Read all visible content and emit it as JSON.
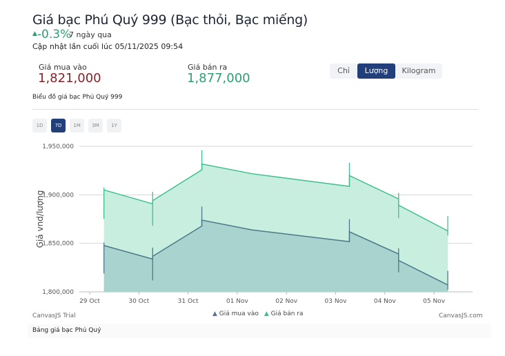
{
  "header": {
    "title": "Giá bạc Phú Quý 999 (Bạc thỏi, Bạc miếng)",
    "change": "-0.3%",
    "change_arrow": "▲",
    "period": "7 ngày qua",
    "updated": "Cập nhật lần cuối lúc 05/11/2025 09:54"
  },
  "prices": {
    "buy_label": "Giá mua vào",
    "buy_value": "1,821,000",
    "sell_label": "Giá bán ra",
    "sell_value": "1,877,000"
  },
  "unit_tabs": [
    {
      "label": "Chỉ",
      "active": false
    },
    {
      "label": "Lượng",
      "active": true
    },
    {
      "label": "Kilogram",
      "active": false
    }
  ],
  "chart_caption": "Biểu đồ giá bạc Phú Quý 999",
  "range_buttons": [
    {
      "label": "1D"
    },
    {
      "label": "7D",
      "active": true
    },
    {
      "label": "1M"
    },
    {
      "label": "3M"
    },
    {
      "label": "1Y"
    }
  ],
  "colors": {
    "sell_line": "#3fbf8e",
    "sell_fill": "#c8eedf",
    "buy_line": "#4d7889",
    "buy_fill": "#a8d3cf",
    "active": "#223f7a"
  },
  "chart_data": {
    "type": "area",
    "ylabel": "Giá vnd/lượng",
    "ylim": [
      1800000,
      1950000
    ],
    "yticks": [
      1800000,
      1850000,
      1900000,
      1950000
    ],
    "ytick_labels": [
      "1,800,000",
      "1,850,000",
      "1,900,000",
      "1,950,000"
    ],
    "xtick_labels": [
      "29 Oct",
      "30 Oct",
      "31 Oct",
      "01 Nov",
      "02 Nov",
      "03 Nov",
      "04 Nov",
      "05 Nov"
    ],
    "x_unit": "days since 29 Oct",
    "grid": true,
    "legend": "bottom-center",
    "series": [
      {
        "name": "Giá bán ra",
        "points": [
          [
            0.29,
            1905000
          ],
          [
            1.28,
            1890700
          ],
          [
            1.28,
            1894000
          ],
          [
            2.28,
            1925700
          ],
          [
            2.28,
            1931800
          ],
          [
            3.3,
            1921700
          ],
          [
            5.28,
            1908700
          ],
          [
            5.28,
            1919800
          ],
          [
            6.28,
            1895700
          ],
          [
            6.28,
            1889300
          ],
          [
            7.28,
            1862800
          ]
        ],
        "whiskers": [
          [
            0.29,
            1875100,
            1907500
          ],
          [
            1.28,
            1868000,
            1903000
          ],
          [
            2.28,
            1925700,
            1946000
          ],
          [
            5.28,
            1908700,
            1933000
          ],
          [
            6.28,
            1876000,
            1902000
          ],
          [
            7.28,
            1858000,
            1878000
          ]
        ]
      },
      {
        "name": "Giá mua vào",
        "points": [
          [
            0.29,
            1847700
          ],
          [
            1.28,
            1833800
          ],
          [
            1.28,
            1836600
          ],
          [
            2.28,
            1867800
          ],
          [
            2.28,
            1873900
          ],
          [
            3.3,
            1863800
          ],
          [
            5.28,
            1851700
          ],
          [
            5.28,
            1861900
          ],
          [
            6.28,
            1839000
          ],
          [
            6.28,
            1832400
          ],
          [
            7.28,
            1807100
          ]
        ],
        "whiskers": [
          [
            0.29,
            1818900,
            1850800
          ],
          [
            1.28,
            1811800,
            1845600
          ],
          [
            2.28,
            1867800,
            1887900
          ],
          [
            5.28,
            1852000,
            1874900
          ],
          [
            6.28,
            1820100,
            1844900
          ],
          [
            7.28,
            1801900,
            1821700
          ]
        ]
      }
    ]
  },
  "legend": {
    "buy": "Giá mua vào",
    "sell": "Giá bán ra"
  },
  "watermark": {
    "left": "CanvasJS Trial",
    "right": "CanvasJS.com"
  },
  "table_title": "Bảng giá bạc Phú Quý"
}
